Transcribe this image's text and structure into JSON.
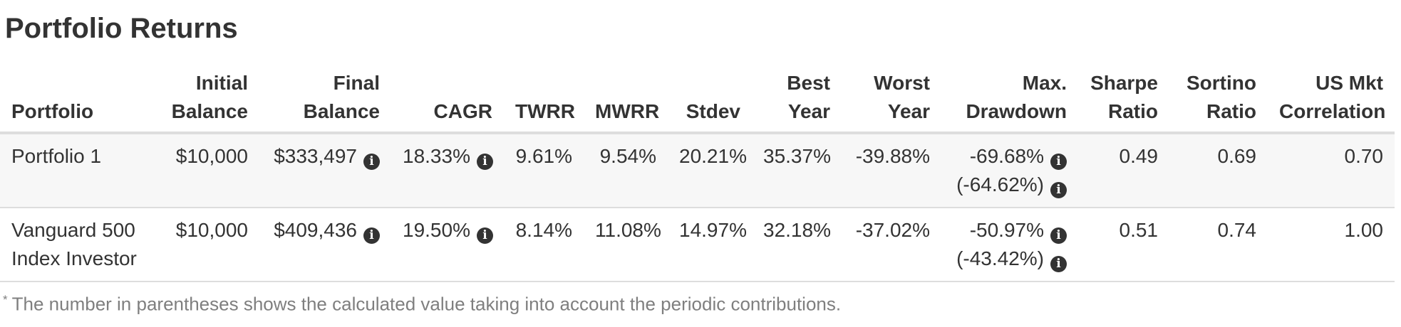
{
  "title": "Portfolio Returns",
  "colors": {
    "text": "#333333",
    "muted": "#7f7f7f",
    "stripe": "#f7f7f7",
    "border": "#dddddd",
    "icon-bg": "#333333",
    "icon-fg": "#ffffff",
    "bg": "#ffffff"
  },
  "icons": {
    "info_glyph": "i"
  },
  "table": {
    "columns": [
      {
        "label": "Portfolio"
      },
      {
        "label": "Initial Balance"
      },
      {
        "label": "Final Balance"
      },
      {
        "label": "CAGR"
      },
      {
        "label": "TWRR"
      },
      {
        "label": "MWRR"
      },
      {
        "label": "Stdev"
      },
      {
        "label": "Best Year"
      },
      {
        "label": "Worst Year"
      },
      {
        "label": "Max. Drawdown"
      },
      {
        "label": "Sharpe Ratio"
      },
      {
        "label": "Sortino Ratio"
      },
      {
        "label": "US Mkt Correlation"
      }
    ],
    "rows": [
      {
        "portfolio": "Portfolio 1",
        "initial_balance": "$10,000",
        "final_balance": "$333,497",
        "cagr": "18.33%",
        "twrr": "9.61%",
        "mwrr": "9.54%",
        "stdev": "20.21%",
        "best_year": "35.37%",
        "worst_year": "-39.88%",
        "max_drawdown": "-69.68%",
        "max_drawdown_with_contributions": "(-64.62%)",
        "sharpe_ratio": "0.49",
        "sortino_ratio": "0.69",
        "us_mkt_correlation": "0.70"
      },
      {
        "portfolio": "Vanguard 500 Index Investor",
        "initial_balance": "$10,000",
        "final_balance": "$409,436",
        "cagr": "19.50%",
        "twrr": "8.14%",
        "mwrr": "11.08%",
        "stdev": "14.97%",
        "best_year": "32.18%",
        "worst_year": "-37.02%",
        "max_drawdown": "-50.97%",
        "max_drawdown_with_contributions": "(-43.42%)",
        "sharpe_ratio": "0.51",
        "sortino_ratio": "0.74",
        "us_mkt_correlation": "1.00"
      }
    ]
  },
  "footnote": {
    "marker": "*",
    "text": "The number in parentheses shows the calculated value taking into account the periodic contributions."
  }
}
